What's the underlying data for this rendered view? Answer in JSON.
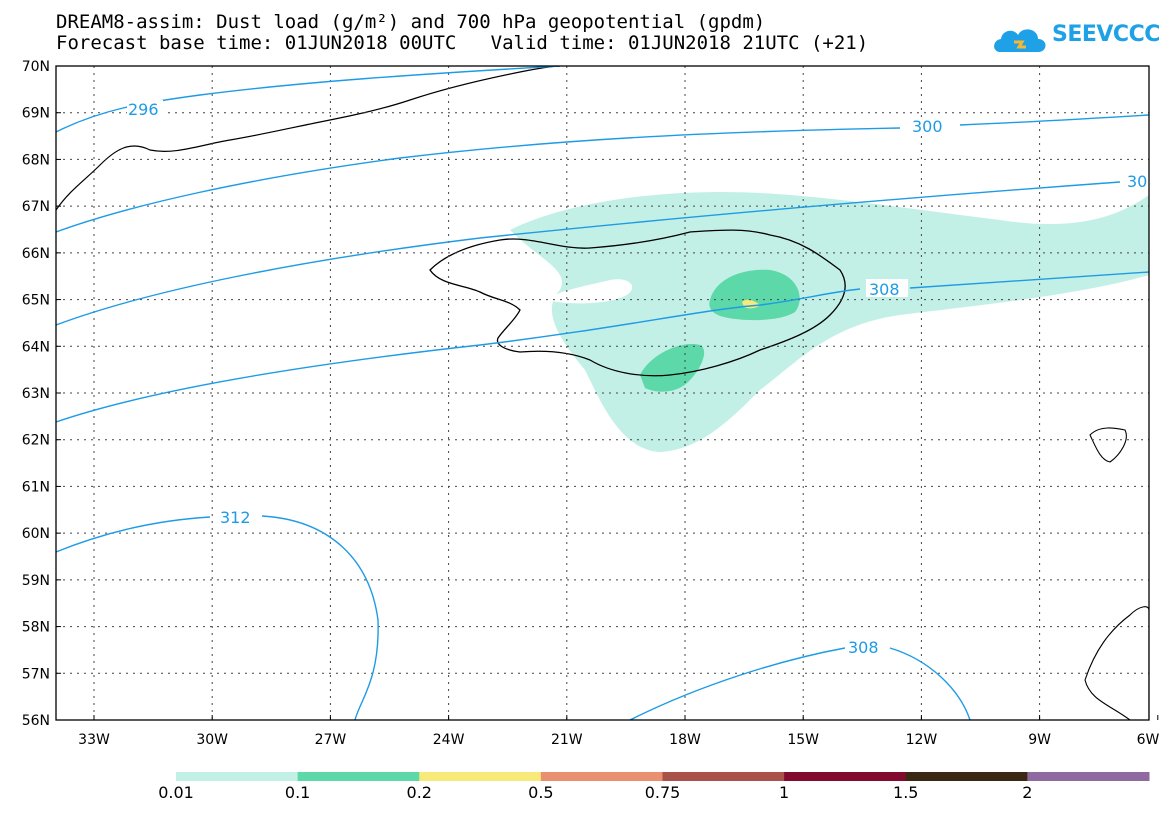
{
  "header": {
    "line1": "DREAM8-assim: Dust load (g/m²) and 700 hPa geopotential (gpdm)",
    "line2": "Forecast base time: 01JUN2018 00UTC   Valid time: 01JUN2018 21UTC (+21)",
    "logo_text": "SEEVCCC"
  },
  "map": {
    "lat_labels": [
      "70N",
      "69N",
      "68N",
      "67N",
      "66N",
      "65N",
      "64N",
      "63N",
      "62N",
      "61N",
      "60N",
      "59N",
      "58N",
      "57N",
      "56N"
    ],
    "lon_labels": [
      "33W",
      "30W",
      "27W",
      "24W",
      "21W",
      "18W",
      "15W",
      "12W",
      "9W",
      "6W"
    ],
    "contour_labels": [
      "296",
      "300",
      "30",
      "308",
      "312",
      "308"
    ]
  },
  "colorbar": {
    "colors": [
      "#c3f0e6",
      "#5dd8a8",
      "#f7ea78",
      "#ea8f70",
      "#a8524a",
      "#820a2e",
      "#3b2813",
      "#8f6aa0"
    ],
    "labels": [
      "0.01",
      "0.1",
      "0.2",
      "0.5",
      "0.75",
      "1",
      "1.5",
      "2"
    ]
  }
}
